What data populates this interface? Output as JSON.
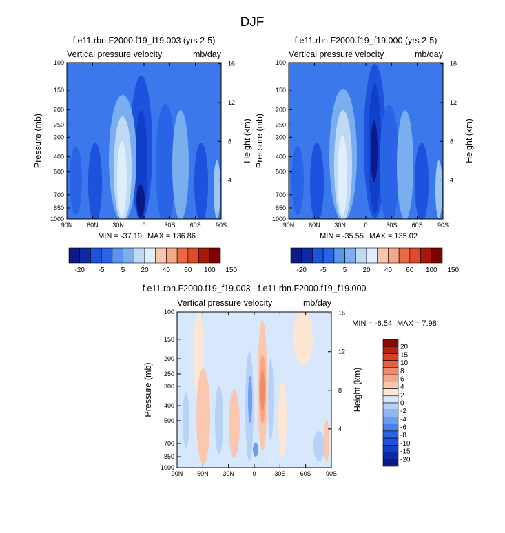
{
  "figure_title": "DJF",
  "colors": {
    "page_bg": "#ffffff",
    "abs_scale": [
      "#0a1a88",
      "#0d2aa8",
      "#1040c8",
      "#1c52dc",
      "#2a64e6",
      "#3a78ec",
      "#5a94ee",
      "#7aaeee",
      "#9ec6f2",
      "#c0daf6",
      "#dfeefc",
      "#fde4d2",
      "#f9c6ab",
      "#f5a888",
      "#f08a68",
      "#ea6a48",
      "#e04a2a",
      "#cc3018",
      "#a81808",
      "#800000"
    ],
    "diff_scale": [
      "#0a1a88",
      "#0d2aa8",
      "#1040c8",
      "#1c52dc",
      "#2a64e6",
      "#4a80ec",
      "#6c9cee",
      "#90b8f2",
      "#b6d2f6",
      "#d8e8fc",
      "#fde6d4",
      "#f9c8ae",
      "#f5a888",
      "#f08a68",
      "#e8603e",
      "#d84020",
      "#b82210",
      "#8a0a00"
    ]
  },
  "chart_data": [
    {
      "type": "heatmap",
      "id": "left",
      "title": "f.e11.rbn.F2000.f19_f19.003 (yrs 2-5)",
      "left_label": "Vertical pressure velocity",
      "right_label": "mb/day",
      "ylabel": "Pressure (mb)",
      "y2label": "Height (km)",
      "x_ticks": [
        "90N",
        "60N",
        "30N",
        "0",
        "30S",
        "60S",
        "90S"
      ],
      "x_tick_lat": [
        90,
        60,
        30,
        0,
        -30,
        -60,
        -90
      ],
      "y_ticks": [
        "100",
        "150",
        "200",
        "250",
        "300",
        "400",
        "500",
        "700",
        "850",
        "1000"
      ],
      "y_tick_values": [
        100,
        150,
        200,
        250,
        300,
        400,
        500,
        700,
        850,
        1000
      ],
      "y2_ticks": [
        "16",
        "12",
        "8",
        "4"
      ],
      "y2_tick_values": [
        16,
        12,
        8,
        4
      ],
      "min_text": "MIN = -37.19",
      "max_text": "MAX = 136.86",
      "xlim": [
        90,
        -90
      ],
      "ylim": [
        1000,
        100
      ],
      "colorbar": {
        "orientation": "horizontal",
        "levels": [
          "-20",
          "-5",
          "5",
          "20",
          "40",
          "60",
          "100",
          "150"
        ],
        "n_boxes": 14
      }
    },
    {
      "type": "heatmap",
      "id": "right",
      "title": "f.e11.rbn.F2000.f19_f19.000 (yrs 2-5)",
      "left_label": "Vertical pressure velocity",
      "right_label": "mb/day",
      "ylabel": "Pressure (mb)",
      "y2label": "Height (km)",
      "x_ticks": [
        "90N",
        "60N",
        "30N",
        "0",
        "30S",
        "60S",
        "90S"
      ],
      "x_tick_lat": [
        90,
        60,
        30,
        0,
        -30,
        -60,
        -90
      ],
      "y_ticks": [
        "100",
        "150",
        "200",
        "250",
        "300",
        "400",
        "500",
        "700",
        "850",
        "1000"
      ],
      "y_tick_values": [
        100,
        150,
        200,
        250,
        300,
        400,
        500,
        700,
        850,
        1000
      ],
      "y2_ticks": [
        "16",
        "12",
        "8",
        "4"
      ],
      "y2_tick_values": [
        16,
        12,
        8,
        4
      ],
      "min_text": "MIN = -35.55",
      "max_text": "MAX = 135.02",
      "xlim": [
        90,
        -90
      ],
      "ylim": [
        1000,
        100
      ],
      "colorbar": {
        "orientation": "horizontal",
        "levels": [
          "-20",
          "-5",
          "5",
          "20",
          "40",
          "60",
          "100",
          "150"
        ],
        "n_boxes": 14
      }
    },
    {
      "type": "heatmap",
      "id": "diff",
      "title": "f.e11.rbn.F2000.f19_f19.003 - f.e11.rbn.F2000.f19_f19.000",
      "left_label": "Vertical pressure velocity",
      "right_label": "mb/day",
      "ylabel": "Pressure (mb)",
      "y2label": "Height (km)",
      "x_ticks": [
        "90N",
        "60N",
        "30N",
        "0",
        "30S",
        "60S",
        "90S"
      ],
      "x_tick_lat": [
        90,
        60,
        30,
        0,
        -30,
        -60,
        -90
      ],
      "y_ticks": [
        "100",
        "150",
        "200",
        "250",
        "300",
        "400",
        "500",
        "700",
        "850",
        "1000"
      ],
      "y_tick_values": [
        100,
        150,
        200,
        250,
        300,
        400,
        500,
        700,
        850,
        1000
      ],
      "y2_ticks": [
        "16",
        "12",
        "8",
        "4"
      ],
      "y2_tick_values": [
        16,
        12,
        8,
        4
      ],
      "min_text": "MIN = -6.54",
      "max_text": "MAX = 7.98",
      "xlim": [
        90,
        -90
      ],
      "ylim": [
        1000,
        100
      ],
      "colorbar": {
        "orientation": "vertical",
        "levels": [
          "20",
          "15",
          "10",
          "8",
          "6",
          "4",
          "2",
          "0",
          "-2",
          "-4",
          "-6",
          "-8",
          "-10",
          "-15",
          "-20"
        ],
        "n_boxes": 18
      }
    }
  ]
}
